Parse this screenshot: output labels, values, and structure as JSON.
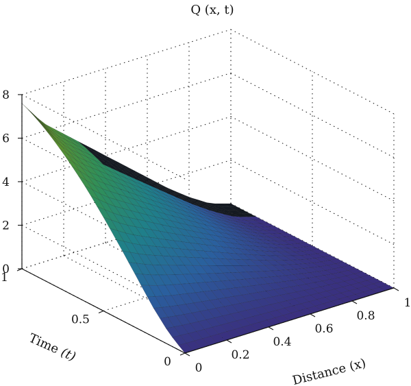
{
  "chart_data": {
    "type": "surface",
    "title": "Q (x, t)",
    "xlabel": "Distance (x)",
    "ylabel_main": "Time ",
    "ylabel_var": "(t)",
    "zlabel": "",
    "x_ticks": [
      "0",
      "0.2",
      "0.4",
      "0.6",
      "0.8",
      "1"
    ],
    "y_ticks": [
      "0",
      "0.5",
      "1"
    ],
    "z_ticks": [
      "0",
      "2",
      "4",
      "6",
      "8"
    ],
    "xlim": [
      0,
      1
    ],
    "ylim": [
      0,
      1
    ],
    "zlim": [
      0,
      8
    ],
    "grid": true,
    "colormap": [
      "#3a2f7e",
      "#2a5f9e",
      "#1f7f8a",
      "#2f8f5a",
      "#5a8f2f",
      "#1a1a14"
    ],
    "corner_values": [
      {
        "x": 0,
        "t": 0,
        "Q": 0.0
      },
      {
        "x": 1,
        "t": 0,
        "Q": 0.0
      },
      {
        "x": 0,
        "t": 1,
        "Q": 7.6
      },
      {
        "x": 1,
        "t": 1,
        "Q": 0.0
      }
    ],
    "edge_x0": [
      {
        "t": 0.0,
        "Q": 0.0
      },
      {
        "t": 0.1,
        "Q": 0.2
      },
      {
        "t": 0.2,
        "Q": 0.8
      },
      {
        "t": 0.3,
        "Q": 1.7
      },
      {
        "t": 0.4,
        "Q": 2.6
      },
      {
        "t": 0.5,
        "Q": 3.5
      },
      {
        "t": 0.6,
        "Q": 4.4
      },
      {
        "t": 0.7,
        "Q": 5.2
      },
      {
        "t": 0.8,
        "Q": 6.0
      },
      {
        "t": 0.9,
        "Q": 6.8
      },
      {
        "t": 1.0,
        "Q": 7.6
      }
    ],
    "edge_t1": [
      {
        "x": 0.0,
        "Q": 7.6
      },
      {
        "x": 0.1,
        "Q": 6.4
      },
      {
        "x": 0.2,
        "Q": 5.6
      },
      {
        "x": 0.3,
        "Q": 4.8
      },
      {
        "x": 0.4,
        "Q": 4.0
      },
      {
        "x": 0.5,
        "Q": 3.2
      },
      {
        "x": 0.6,
        "Q": 2.4
      },
      {
        "x": 0.7,
        "Q": 1.6
      },
      {
        "x": 0.8,
        "Q": 0.9
      },
      {
        "x": 0.9,
        "Q": 0.3
      },
      {
        "x": 1.0,
        "Q": 0.0
      }
    ]
  }
}
